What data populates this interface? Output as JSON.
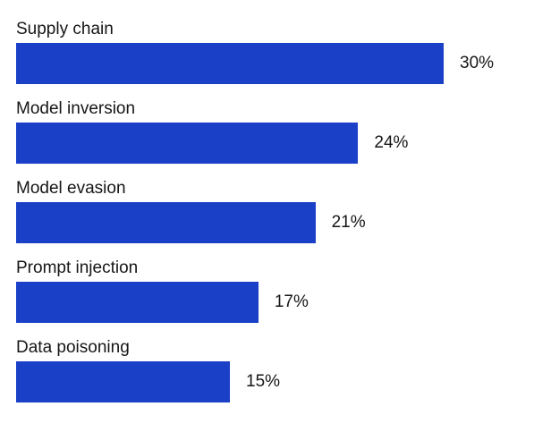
{
  "chart_data": {
    "type": "bar",
    "orientation": "horizontal",
    "categories": [
      "Supply chain",
      "Model inversion",
      "Model evasion",
      "Prompt injection",
      "Data poisoning"
    ],
    "values": [
      30,
      24,
      21,
      17,
      15
    ],
    "value_labels": [
      "30%",
      "24%",
      "21%",
      "17%",
      "15%"
    ],
    "unit": "%",
    "bar_color": "#1a40c8",
    "grid": false,
    "legend": "none"
  }
}
